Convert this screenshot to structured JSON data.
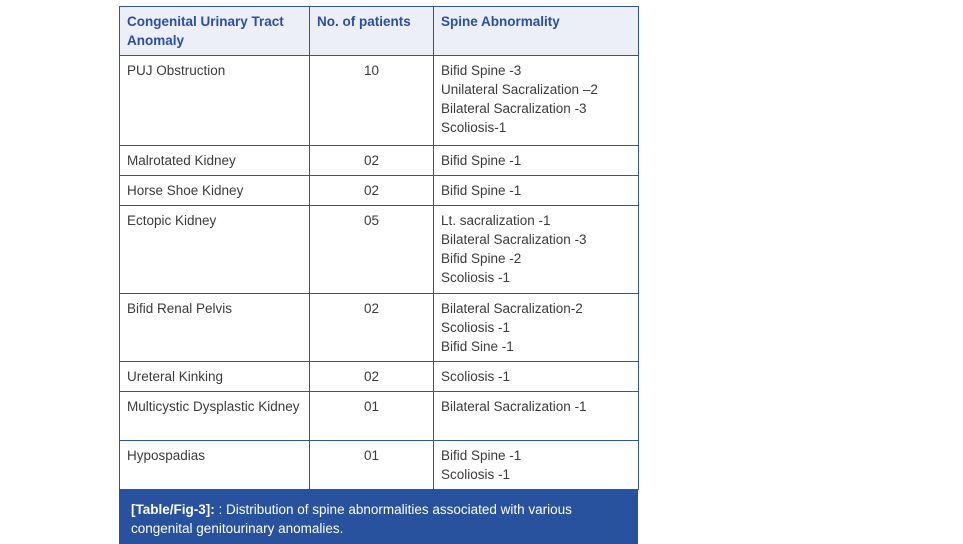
{
  "table": {
    "headers": [
      "Congenital Urinary Tract Anomaly",
      "No. of patients",
      "Spine Abnormality"
    ],
    "rows": [
      {
        "anomaly": "PUJ Obstruction",
        "patients": "10",
        "abnormalities": [
          "Bifid Spine -3",
          "Unilateral Sacralization –2",
          "Bilateral Sacralization -3",
          "Scoliosis-1"
        ]
      },
      {
        "anomaly": "Malrotated Kidney",
        "patients": "02",
        "abnormalities": [
          "Bifid Spine -1"
        ]
      },
      {
        "anomaly": "Horse Shoe Kidney",
        "patients": "02",
        "abnormalities": [
          "Bifid Spine -1"
        ]
      },
      {
        "anomaly": "Ectopic Kidney",
        "patients": "05",
        "abnormalities": [
          "Lt. sacralization -1",
          "Bilateral Sacralization -3",
          "Bifid Spine -2",
          "Scoliosis -1"
        ]
      },
      {
        "anomaly": "Bifid Renal Pelvis",
        "patients": "02",
        "abnormalities": [
          "Bilateral Sacralization-2",
          "Scoliosis -1",
          "Bifid Sine -1"
        ]
      },
      {
        "anomaly": "Ureteral Kinking",
        "patients": "02",
        "abnormalities": [
          "Scoliosis -1"
        ]
      },
      {
        "anomaly": "Multicystic Dysplastic Kidney",
        "patients": "01",
        "abnormalities": [
          "Bilateral Sacralization -1"
        ]
      },
      {
        "anomaly": "Hypospadias",
        "patients": "01",
        "abnormalities": [
          "Bifid Spine -1",
          "Scoliosis -1"
        ]
      }
    ]
  },
  "caption": {
    "label": "[Table/Fig-3]:",
    "text": ": Distribution of spine abnormalities associated with various congenital genitourinary anomalies."
  },
  "colors": {
    "border": "#2e54a1",
    "header_bg": "#eceef8",
    "header_text": "#2b4fa2",
    "body_text": "#3b3b3b",
    "caption_bg": "#28519e",
    "caption_text": "#ffffff"
  }
}
